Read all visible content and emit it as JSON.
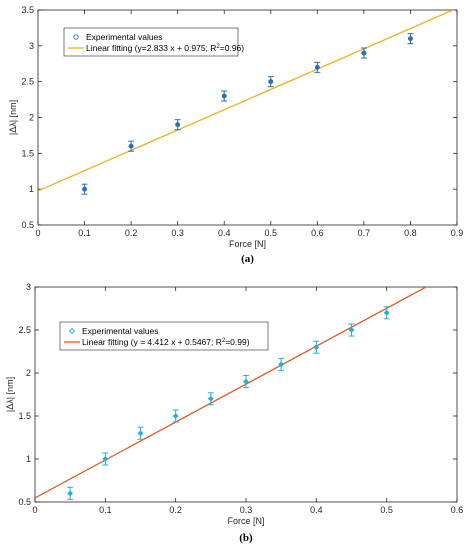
{
  "chart_data": [
    {
      "type": "scatter",
      "panel_label": "(a)",
      "xlabel": "Force [N]",
      "ylabel": "|Δλ| [nm]",
      "xlim": [
        0,
        0.9
      ],
      "ylim": [
        0.5,
        3.5
      ],
      "x_ticks": [
        "0",
        "0.1",
        "0.2",
        "0.3",
        "0.4",
        "0.5",
        "0.6",
        "0.7",
        "0.8",
        "0.9"
      ],
      "y_ticks": [
        "0.5",
        "1",
        "1.5",
        "2",
        "2.5",
        "3",
        "3.5"
      ],
      "legend_position": "top-left",
      "series": [
        {
          "name": "Experimental values",
          "kind": "scatter-errorbar",
          "marker": "circle",
          "color": "#2f6fb5",
          "x": [
            0.1,
            0.2,
            0.3,
            0.4,
            0.5,
            0.6,
            0.7,
            0.8
          ],
          "y": [
            1.0,
            1.6,
            1.9,
            2.3,
            2.5,
            2.7,
            2.9,
            3.1
          ],
          "error": [
            0.07,
            0.07,
            0.07,
            0.07,
            0.07,
            0.07,
            0.07,
            0.07
          ]
        },
        {
          "name": "Linear fitting (y=2.833 x + 0.975; R²=0.96)",
          "kind": "line",
          "color": "#edb120",
          "slope": 2.833,
          "intercept": 0.975
        }
      ]
    },
    {
      "type": "scatter",
      "panel_label": "(b)",
      "xlabel": "Force [N]",
      "ylabel": "|Δλ| [nm]",
      "xlim": [
        0,
        0.6
      ],
      "ylim": [
        0.5,
        3
      ],
      "x_ticks": [
        "0",
        "0.1",
        "0.2",
        "0.3",
        "0.4",
        "0.5",
        "0.6"
      ],
      "y_ticks": [
        "0.5",
        "1",
        "1.5",
        "2",
        "2.5",
        "3"
      ],
      "legend_position": "top-left",
      "series": [
        {
          "name": "Experimental values",
          "kind": "scatter-errorbar",
          "marker": "diamond",
          "color": "#20b2d0",
          "x": [
            0.05,
            0.1,
            0.15,
            0.2,
            0.25,
            0.3,
            0.35,
            0.4,
            0.45,
            0.5
          ],
          "y": [
            0.6,
            1.0,
            1.3,
            1.5,
            1.7,
            1.9,
            2.1,
            2.3,
            2.5,
            2.7
          ],
          "error": [
            0.07,
            0.07,
            0.07,
            0.07,
            0.07,
            0.07,
            0.07,
            0.07,
            0.07,
            0.07
          ]
        },
        {
          "name": "Linear fitting (y = 4.412 x + 0.5467; R²=0.99)",
          "kind": "line",
          "color": "#e05a1e",
          "slope": 4.412,
          "intercept": 0.5467
        }
      ]
    }
  ]
}
